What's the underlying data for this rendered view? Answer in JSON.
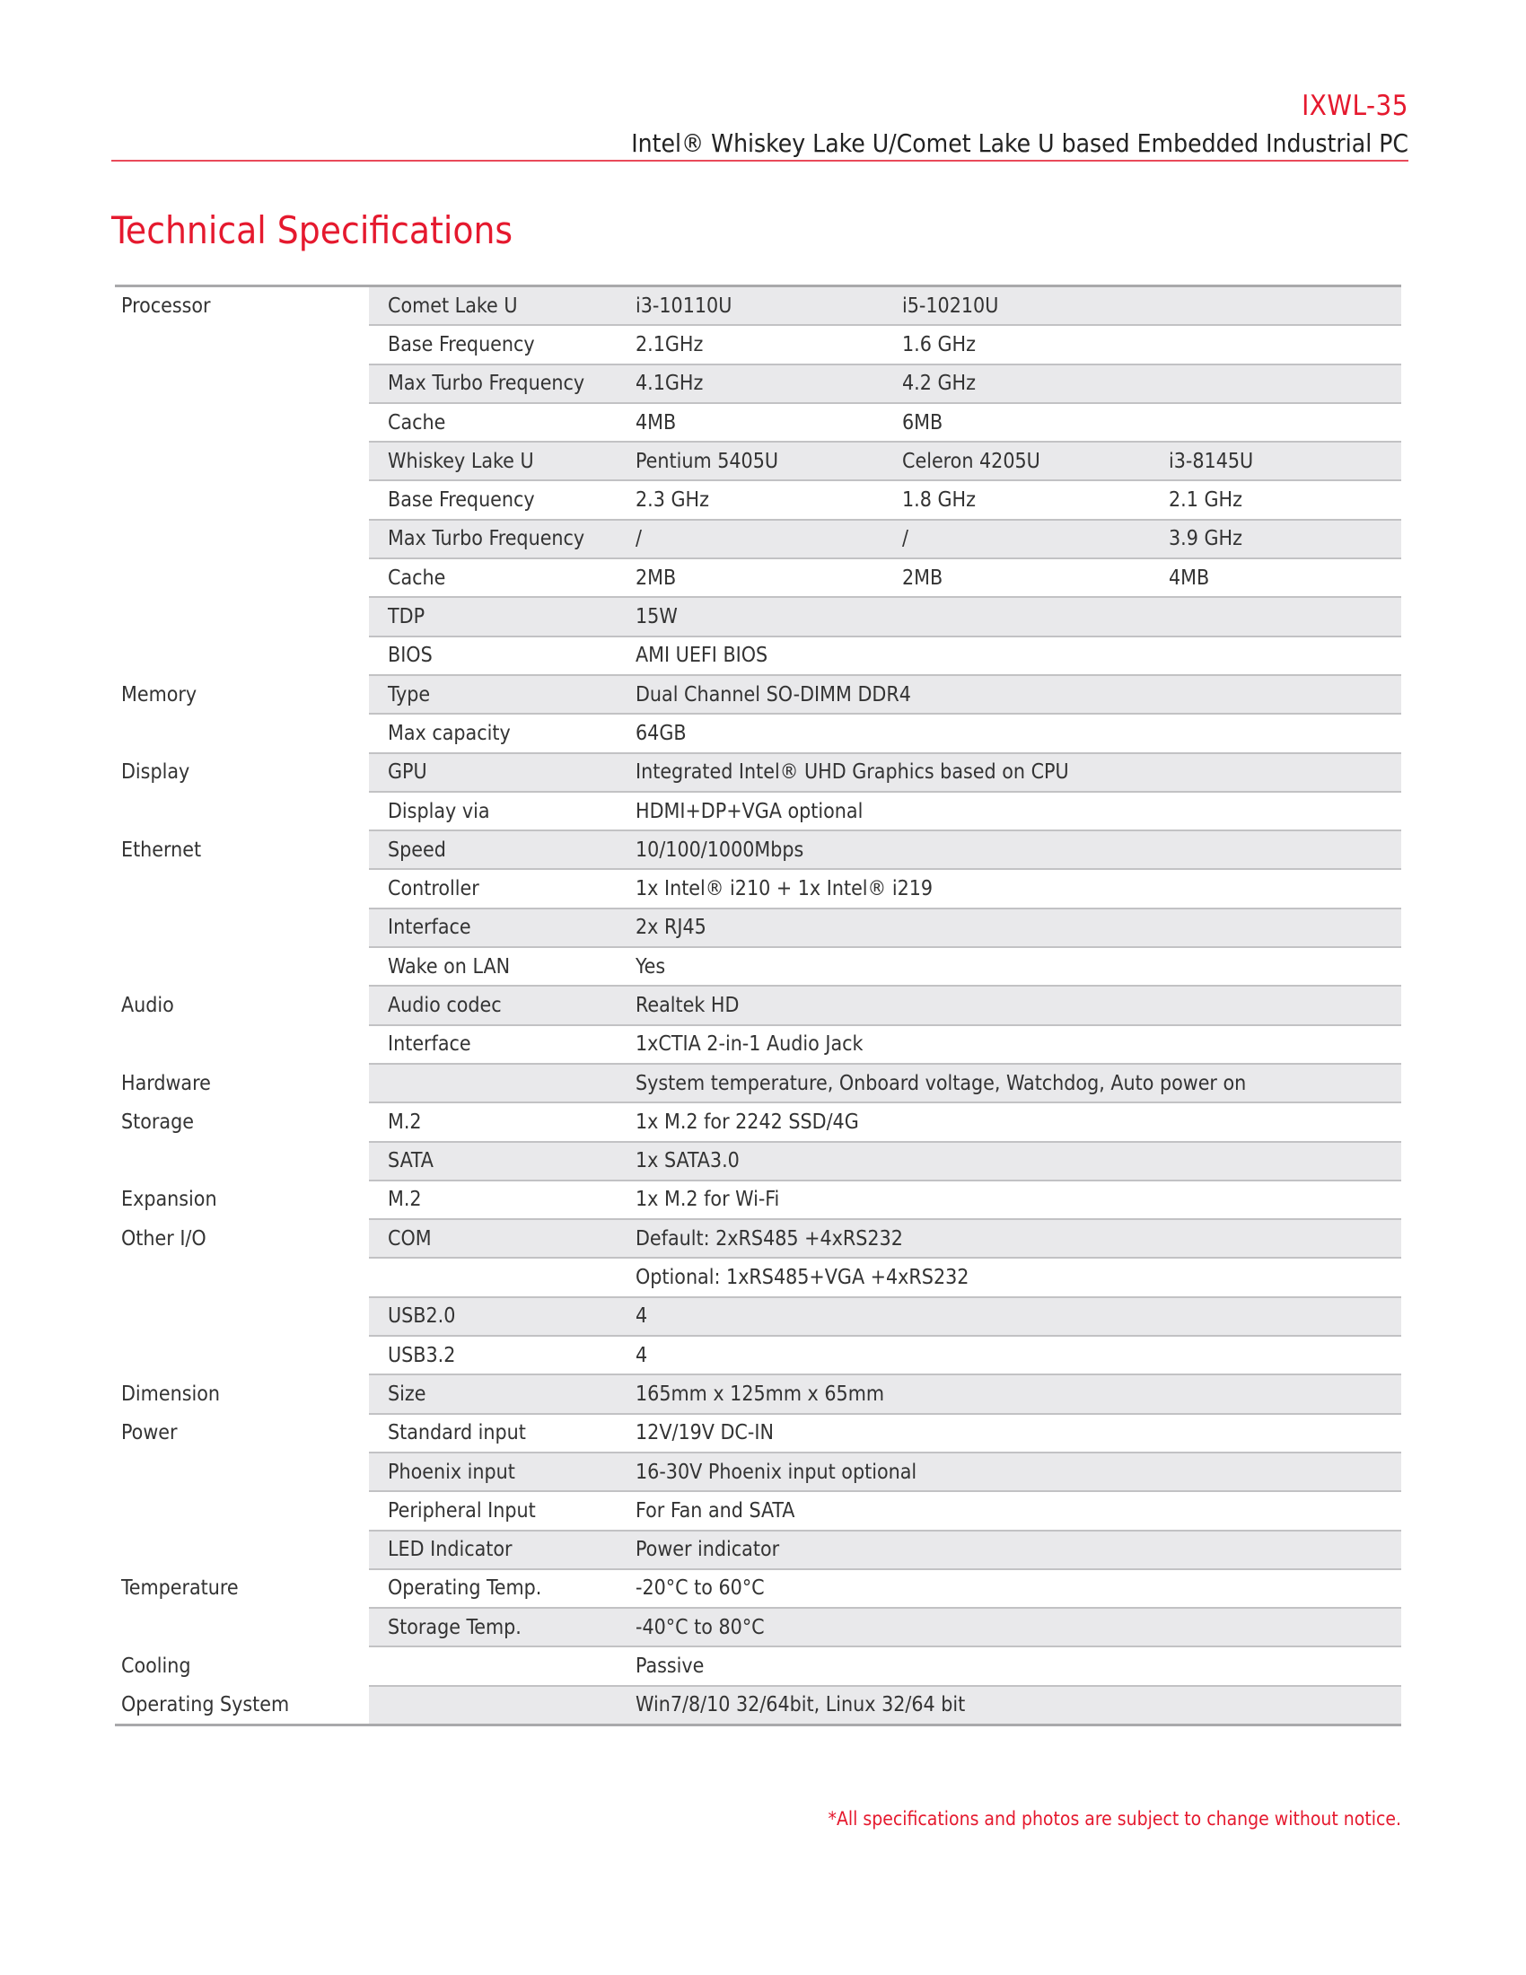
{
  "header": {
    "model": "IXWL-35",
    "subtitle": "Intel® Whiskey Lake U/Comet Lake U based Embedded Industrial PC"
  },
  "title": "Technical Specifications",
  "colors": {
    "accent": "#e5192e",
    "row_shade": "#e9e9eb"
  },
  "rows": [
    [
      "Processor",
      "Comet Lake U",
      "i3-10110U",
      "i5-10210U",
      ""
    ],
    [
      "",
      "Base Frequency",
      "2.1GHz",
      "1.6 GHz",
      ""
    ],
    [
      "",
      "Max Turbo Frequency",
      "4.1GHz",
      "4.2 GHz",
      ""
    ],
    [
      "",
      "Cache",
      "4MB",
      "6MB",
      ""
    ],
    [
      "",
      "Whiskey Lake U",
      "Pentium 5405U",
      "Celeron 4205U",
      "i3-8145U"
    ],
    [
      "",
      "Base Frequency",
      "2.3 GHz",
      "1.8 GHz",
      "2.1 GHz"
    ],
    [
      "",
      "Max Turbo Frequency",
      " /",
      "/",
      "3.9 GHz"
    ],
    [
      "",
      "Cache",
      "2MB",
      "2MB",
      "4MB"
    ],
    [
      "",
      "TDP",
      "15W"
    ],
    [
      "",
      "BIOS",
      "AMI UEFI BIOS"
    ],
    [
      "Memory",
      "Type",
      "Dual Channel SO-DIMM DDR4"
    ],
    [
      "",
      "Max capacity",
      "64GB"
    ],
    [
      "Display",
      "GPU",
      "Integrated Intel® UHD Graphics based on CPU"
    ],
    [
      "",
      "Display via",
      "HDMI+DP+VGA optional"
    ],
    [
      "Ethernet",
      "Speed",
      "10/100/1000Mbps"
    ],
    [
      "",
      "Controller",
      "1x Intel® i210 + 1x Intel® i219"
    ],
    [
      "",
      "Interface",
      "2x RJ45"
    ],
    [
      "",
      "Wake on LAN",
      "Yes"
    ],
    [
      "Audio",
      "Audio codec",
      "Realtek HD"
    ],
    [
      "",
      "Interface",
      "1xCTIA 2-in-1 Audio Jack"
    ],
    [
      "Hardware",
      "",
      "System temperature, Onboard voltage, Watchdog, Auto power on"
    ],
    [
      "Storage",
      "M.2",
      "1x M.2 for 2242 SSD/4G"
    ],
    [
      "",
      "SATA",
      "1x SATA3.0"
    ],
    [
      "Expansion",
      "M.2",
      "1x M.2 for Wi-Fi"
    ],
    [
      "Other I/O",
      "COM",
      "Default: 2xRS485 +4xRS232"
    ],
    [
      "",
      "",
      "Optional: 1xRS485+VGA +4xRS232"
    ],
    [
      "",
      "USB2.0",
      "4"
    ],
    [
      "",
      "USB3.2",
      "4"
    ],
    [
      "Dimension",
      "Size",
      "165mm x 125mm x 65mm"
    ],
    [
      "Power",
      "Standard input",
      "12V/19V DC-IN"
    ],
    [
      "",
      "Phoenix input",
      "16-30V Phoenix input optional"
    ],
    [
      "",
      "Peripheral Input",
      "For Fan and SATA"
    ],
    [
      "",
      "LED Indicator",
      "Power indicator"
    ],
    [
      "Temperature",
      "Operating Temp.",
      "-20°C to 60°C"
    ],
    [
      "",
      "Storage Temp.",
      "-40°C to 80°C"
    ],
    [
      "Cooling",
      "",
      "Passive"
    ],
    [
      "Operating System",
      "",
      "Win7/8/10 32/64bit, Linux 32/64 bit"
    ]
  ],
  "footer": "*All specifications and photos are subject to change without notice."
}
